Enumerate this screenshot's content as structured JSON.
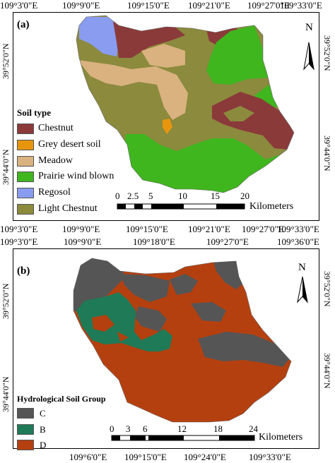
{
  "panel_a": {
    "tag": "(a)",
    "top_ticks": [
      "109°3'0\"E",
      "109°9'0\"E",
      "109°15'0\"E",
      "109°21'0\"E",
      "109°27'0\"E",
      "109°33'0\"E"
    ],
    "bottom_ticks": [
      "109°3'0\"E",
      "109°9'0\"E",
      "109°15'0\"E",
      "109°21'0\"E",
      "109°27'0\"E",
      "109°33'0\"E"
    ],
    "left_ticks": [
      "39°52'0\"N",
      "39°44'0\"N"
    ],
    "right_ticks": [
      "39°52'0\"N",
      "39°44'0\"N"
    ],
    "north": "N",
    "legend_title": "Soil type",
    "legend": [
      {
        "label": "Chestnut",
        "color": "#8b3a3a"
      },
      {
        "label": "Grey desert soil",
        "color": "#e8950e"
      },
      {
        "label": "Meadow",
        "color": "#d9b27f"
      },
      {
        "label": "Prairie wind blown",
        "color": "#3fb51e"
      },
      {
        "label": "Regosol",
        "color": "#8a9cf0"
      },
      {
        "label": "Light Chestnut",
        "color": "#8b8a3d"
      }
    ],
    "scale_ticks": [
      "0",
      "2.5",
      "5",
      "10",
      "15",
      "20"
    ],
    "scale_unit": "Kilometers"
  },
  "panel_b": {
    "tag": "(b)",
    "top_ticks": [
      "109°3'0\"E",
      "109°9'0\"E",
      "109°18'0\"E",
      "109°27'0\"E",
      "109°36'0\"E"
    ],
    "bottom_ticks": [
      "109°6'0\"E",
      "109°15'0\"E",
      "109°24'0\"E",
      "109°33'0\"E"
    ],
    "left_ticks": [
      "39°52'0\"N",
      "39°44'0\"N"
    ],
    "right_ticks": [
      "39°52'0\"N",
      "39°44'0\"N"
    ],
    "north": "N",
    "legend_title": "Hydrological Soil Group",
    "legend": [
      {
        "label": "C",
        "color": "#555555"
      },
      {
        "label": "B",
        "color": "#1e7a57"
      },
      {
        "label": "D",
        "color": "#b5400f"
      }
    ],
    "scale_ticks": [
      "0",
      "3",
      "6",
      "12",
      "18",
      "24"
    ],
    "scale_unit": "Kilometers"
  }
}
